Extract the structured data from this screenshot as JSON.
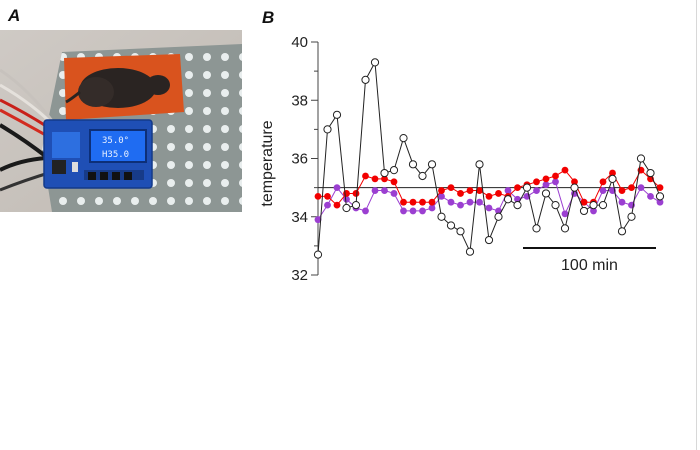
{
  "panels": {
    "a": {
      "label": "A",
      "photo_elements": [
        "copper-heating-pad",
        "mouse",
        "temperature-controller",
        "display"
      ],
      "display": {
        "line1": "35.0°",
        "line2": "H35.0"
      }
    },
    "b": {
      "label": "B"
    }
  },
  "colors": {
    "series_open": "#222222",
    "series_red": "#f20000",
    "series_purple": "#9b3fd1",
    "reference_line": "#222222"
  },
  "chart_data": {
    "type": "line",
    "xlabel": "",
    "ylabel": "temperature",
    "ylim": [
      32,
      40
    ],
    "yticks": [
      32,
      34,
      36,
      38,
      40
    ],
    "reference_line": 35,
    "scale_bar": {
      "label": "100 min",
      "minutes": 100
    },
    "x_unit": "sample index (one point ~ 5 min)",
    "series": [
      {
        "key": "open",
        "marker": "open-circle",
        "values": [
          32.7,
          37.0,
          37.5,
          34.3,
          34.4,
          38.7,
          39.3,
          35.5,
          35.6,
          36.7,
          35.8,
          35.4,
          35.8,
          34.0,
          33.7,
          33.5,
          32.8,
          35.8,
          33.2,
          34.0,
          34.6,
          34.4,
          35.0,
          33.6,
          34.8,
          34.4,
          33.6,
          35.0,
          34.2,
          34.4,
          34.4,
          35.3,
          33.5,
          34.0,
          36.0,
          35.5,
          34.7
        ]
      },
      {
        "key": "red",
        "marker": "filled-circle",
        "values": [
          34.7,
          34.7,
          34.4,
          34.8,
          34.8,
          35.4,
          35.3,
          35.3,
          35.2,
          34.5,
          34.5,
          34.5,
          34.5,
          34.9,
          35.0,
          34.8,
          34.9,
          34.9,
          34.7,
          34.8,
          34.7,
          35.0,
          35.1,
          35.2,
          35.3,
          35.4,
          35.6,
          35.2,
          34.5,
          34.5,
          35.2,
          35.5,
          34.9,
          35.0,
          35.6,
          35.3,
          35.0
        ]
      },
      {
        "key": "purple",
        "marker": "filled-circle",
        "values": [
          33.9,
          34.4,
          35.0,
          34.6,
          34.3,
          34.2,
          34.9,
          34.9,
          34.8,
          34.2,
          34.2,
          34.2,
          34.3,
          34.7,
          34.5,
          34.4,
          34.5,
          34.5,
          34.3,
          34.2,
          34.9,
          34.6,
          34.7,
          34.9,
          35.1,
          35.2,
          34.1,
          34.8,
          34.5,
          34.2,
          34.9,
          34.9,
          34.5,
          34.4,
          35.0,
          34.7,
          34.5
        ]
      }
    ]
  }
}
